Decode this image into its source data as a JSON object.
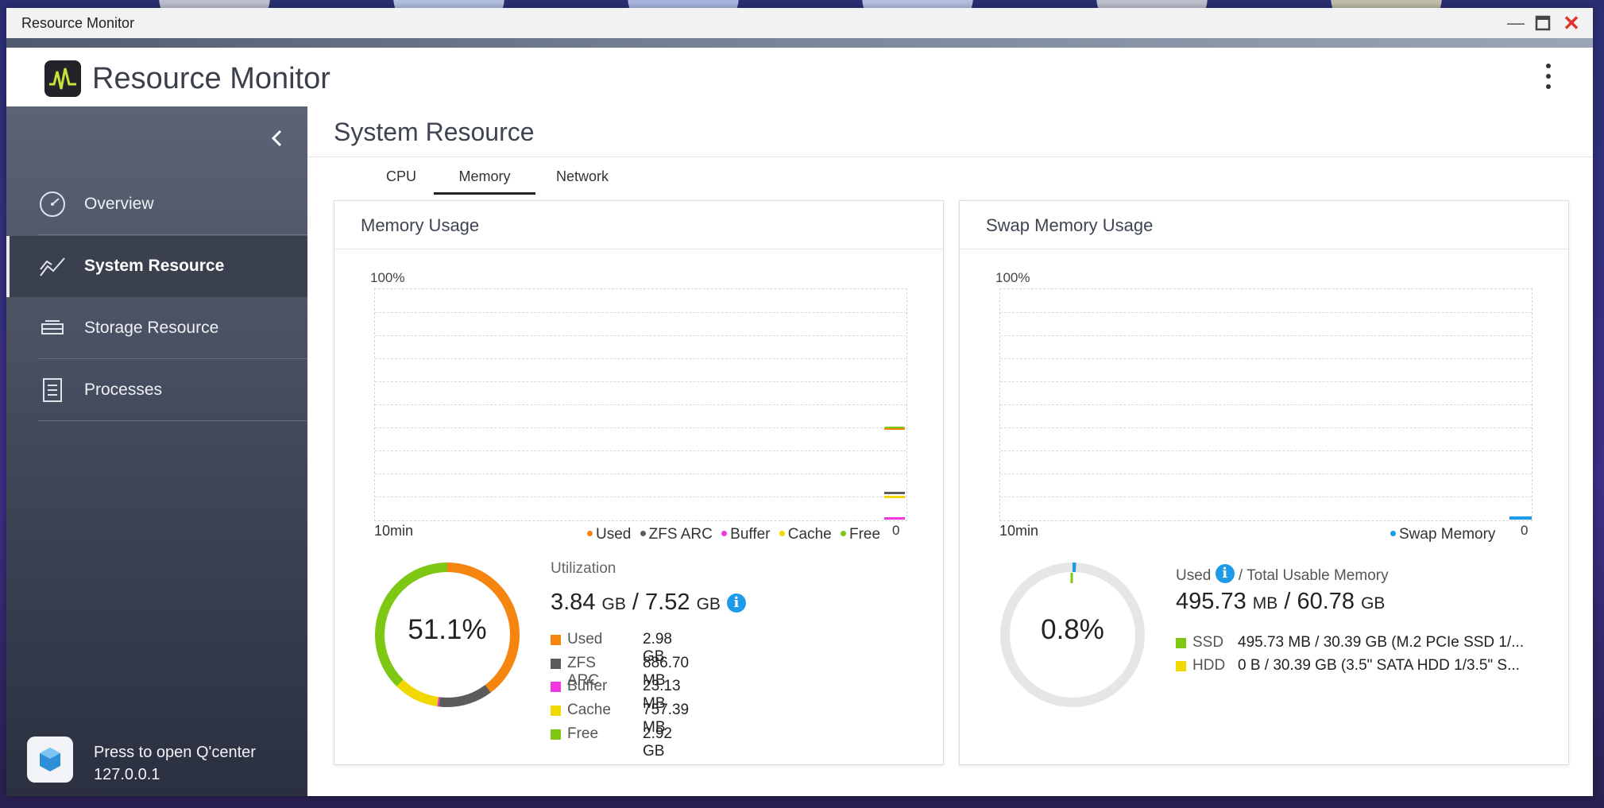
{
  "window": {
    "title": "Resource Monitor"
  },
  "app": {
    "title": "Resource Monitor"
  },
  "sidebar": {
    "items": [
      {
        "label": "Overview",
        "icon": "speedometer-icon"
      },
      {
        "label": "System Resource",
        "icon": "line-chart-icon",
        "active": true
      },
      {
        "label": "Storage Resource",
        "icon": "storage-icon"
      },
      {
        "label": "Processes",
        "icon": "list-document-icon"
      }
    ],
    "qcenter": {
      "line1": "Press to open Q'center",
      "line2": "127.0.0.1"
    }
  },
  "main": {
    "title": "System Resource",
    "tabs": [
      {
        "label": "CPU"
      },
      {
        "label": "Memory",
        "active": true
      },
      {
        "label": "Network"
      }
    ]
  },
  "memory": {
    "title": "Memory Usage",
    "chart": {
      "ymax_label": "100%",
      "x_left_label": "10min",
      "x_right_label": "0"
    },
    "legend": [
      "Used",
      "ZFS ARC",
      "Buffer",
      "Cache",
      "Free"
    ],
    "percent": "51.1%",
    "util_label": "Utilization",
    "used_value": "3.84",
    "used_unit": "GB",
    "sep": "/",
    "total_value": "7.52",
    "total_unit": "GB",
    "rows": [
      {
        "name": "Used",
        "value": "2.98 GB",
        "color": "#f5850f"
      },
      {
        "name": "ZFS ARC",
        "value": "886.70 MB",
        "color": "#5c5c5c"
      },
      {
        "name": "Buffer",
        "value": "23.13 MB",
        "color": "#f038e0"
      },
      {
        "name": "Cache",
        "value": "757.39 MB",
        "color": "#f0d800"
      },
      {
        "name": "Free",
        "value": "2.92 GB",
        "color": "#7ec814"
      }
    ]
  },
  "swap": {
    "title": "Swap Memory Usage",
    "chart": {
      "ymax_label": "100%",
      "x_left_label": "10min",
      "x_right_label": "0"
    },
    "legend": [
      "Swap Memory"
    ],
    "percent": "0.8%",
    "used_label": "Used",
    "total_label": "/ Total Usable Memory",
    "used_value": "495.73",
    "used_unit": "MB",
    "sep": "/",
    "total_value": "60.78",
    "total_unit": "GB",
    "rows": [
      {
        "name": "SSD",
        "value": "495.73 MB / 30.39 GB (M.2 PCIe SSD 1/...",
        "color": "#7ec814"
      },
      {
        "name": "HDD",
        "value": "0 B / 30.39 GB (3.5\" SATA HDD 1/3.5\" S...",
        "color": "#f0d800"
      }
    ]
  },
  "chart_data": [
    {
      "type": "area",
      "title": "Memory Usage",
      "ylim": [
        0,
        100
      ],
      "x_range_label": [
        "10min",
        "0"
      ],
      "series": [
        {
          "name": "Used",
          "color": "#f5850f"
        },
        {
          "name": "ZFS ARC",
          "color": "#5c5c5c"
        },
        {
          "name": "Buffer",
          "color": "#f038e0"
        },
        {
          "name": "Cache",
          "color": "#f0d800"
        },
        {
          "name": "Free",
          "color": "#7ec814"
        }
      ],
      "donut_percent": 51.1
    },
    {
      "type": "area",
      "title": "Swap Memory Usage",
      "ylim": [
        0,
        100
      ],
      "x_range_label": [
        "10min",
        "0"
      ],
      "series": [
        {
          "name": "Swap Memory",
          "color": "#1e9be8"
        }
      ],
      "donut_percent": 0.8
    }
  ]
}
